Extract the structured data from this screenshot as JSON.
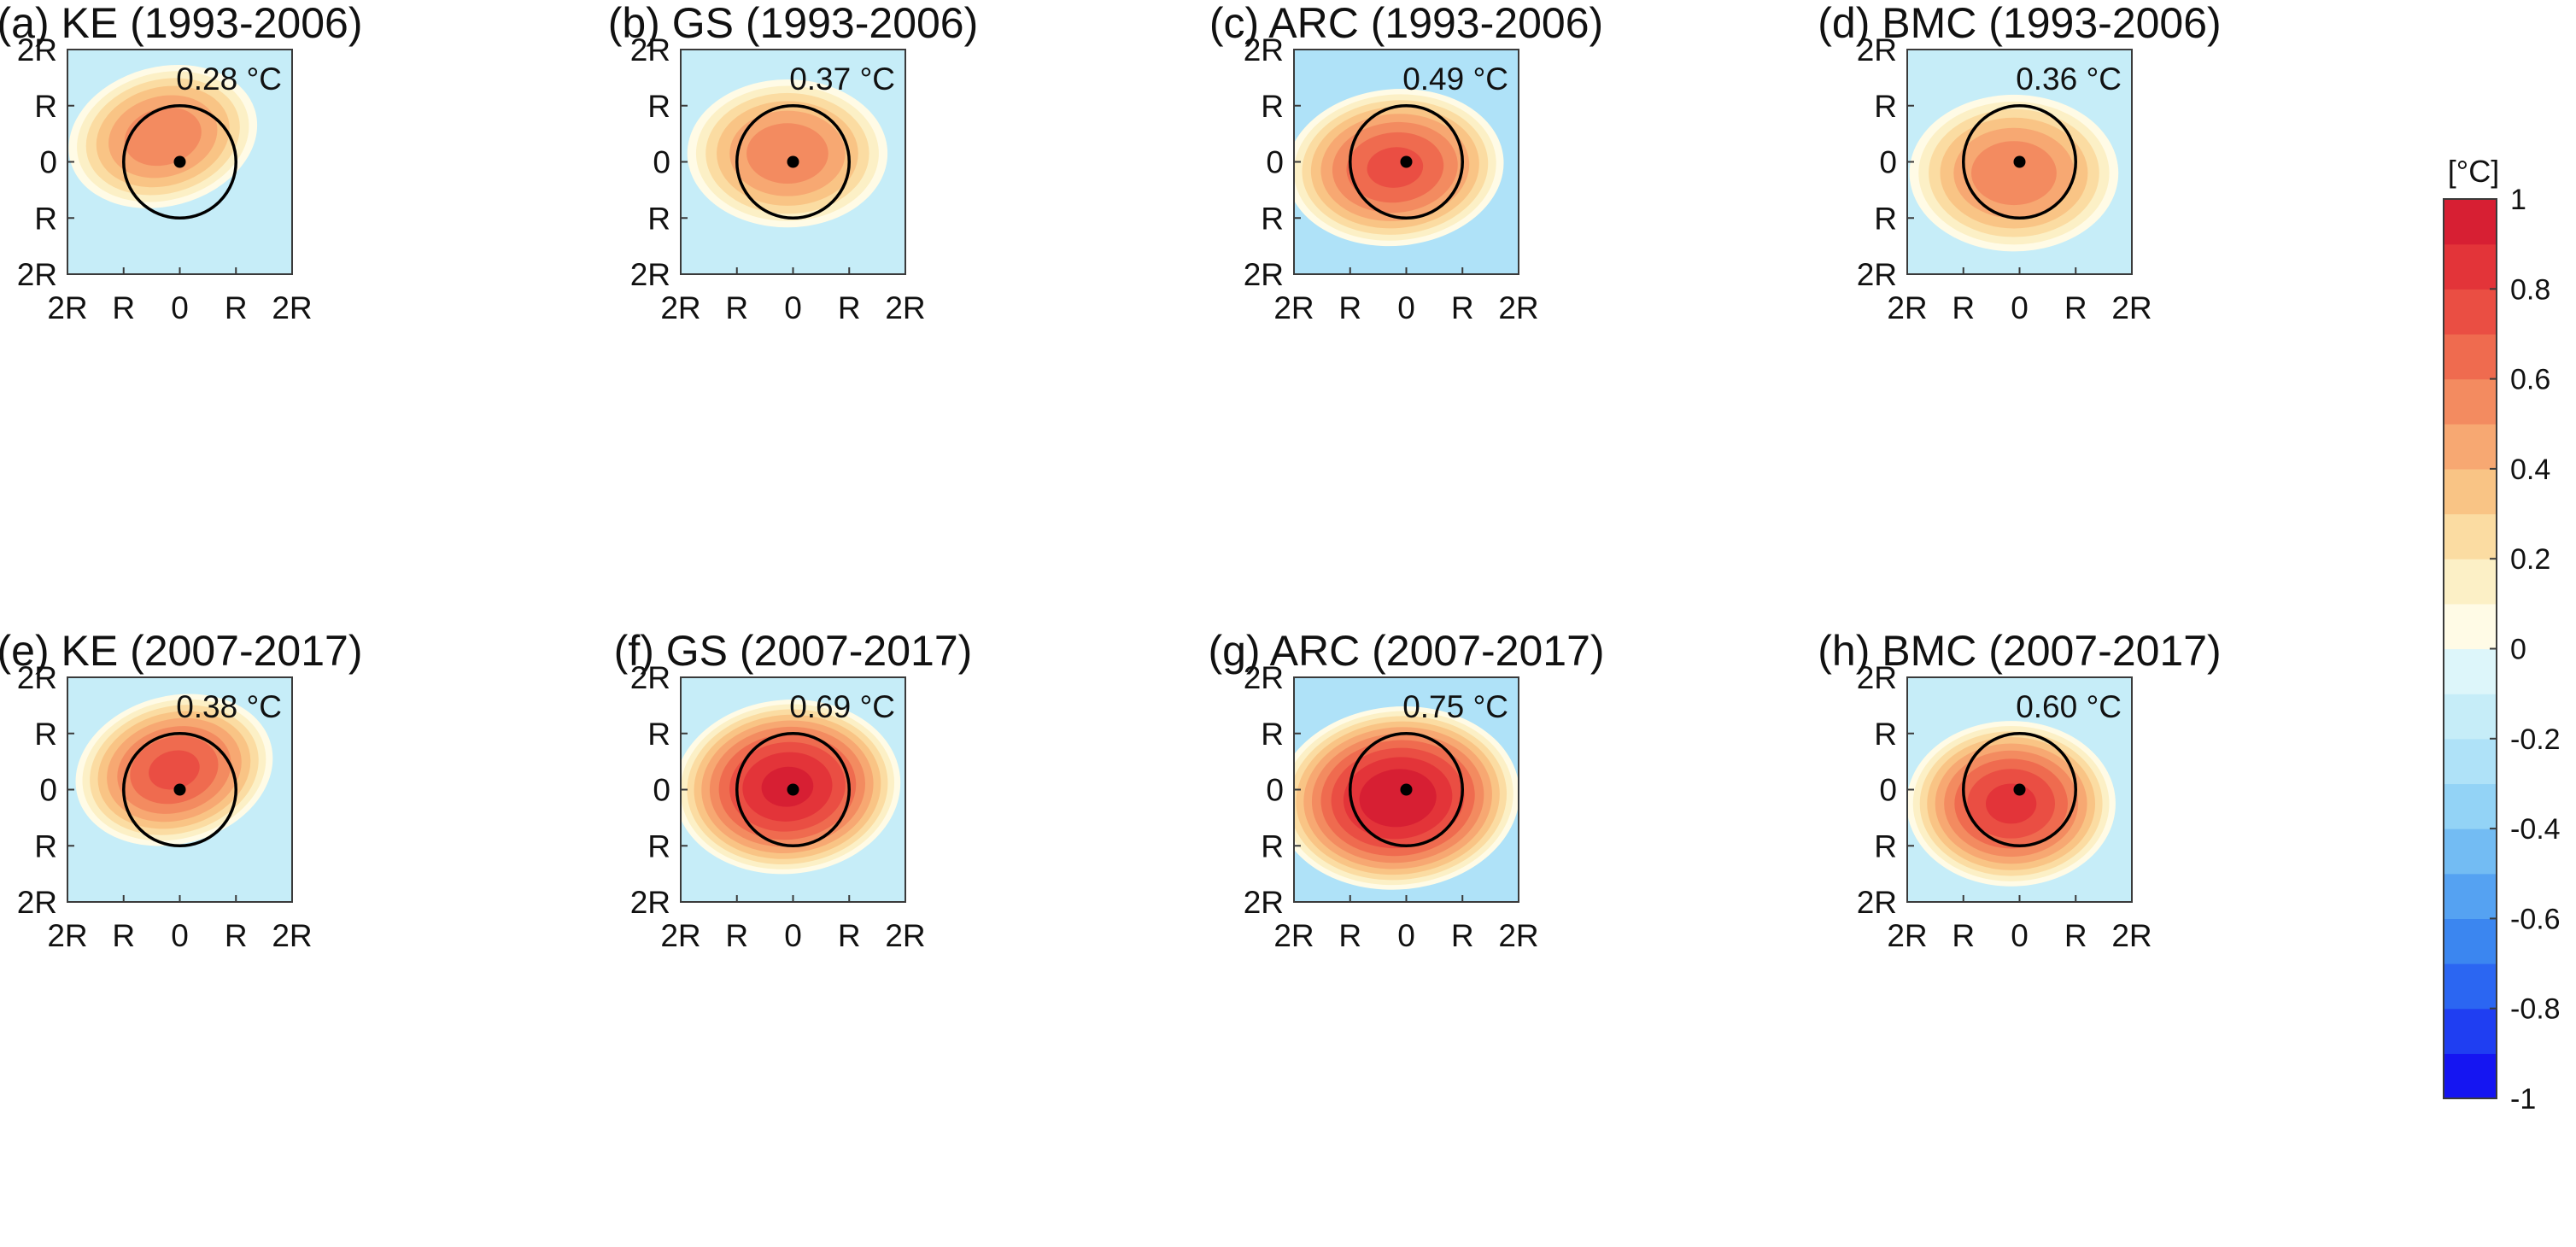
{
  "chart_data": {
    "type": "heatmap",
    "description_units": "composite SST anomaly around eddy center, radius-normalized",
    "x_ticklabels": [
      "2R",
      "R",
      "0",
      "R",
      "2R"
    ],
    "y_ticklabels": [
      "2R",
      "R",
      "0",
      "R",
      "2R"
    ],
    "xlim": [
      -2,
      2
    ],
    "ylim": [
      -2,
      2
    ],
    "eddy_radius": 1,
    "center": [
      0,
      0
    ],
    "colorbar": {
      "unit": "[°C]",
      "range": [
        -1,
        1
      ],
      "step": 0.1,
      "ticks": [
        "1",
        "0.8",
        "0.6",
        "0.4",
        "0.2",
        "0",
        "-0.2",
        "-0.4",
        "-0.6",
        "-0.8",
        "-1"
      ],
      "colors_low_to_high": [
        "#1515f2",
        "#1f3ef2",
        "#2b66f2",
        "#3b86f0",
        "#55a2f2",
        "#73bcf3",
        "#93d3f6",
        "#afe2f8",
        "#c6edf8",
        "#ddf6fa",
        "#fffbe6",
        "#fcf0c6",
        "#fbdca2",
        "#f9c485",
        "#f7a872",
        "#f38b60",
        "#ef6b4f",
        "#ea4e43",
        "#e33439",
        "#d71f33"
      ]
    },
    "panels": [
      {
        "title": "(a) KE (1993-2006)",
        "max_value": "0.28 °C",
        "peak": 0.6,
        "peak_x": -0.3,
        "peak_y": 0.45,
        "spread_x": 1.1,
        "spread_y": 0.8,
        "tilt": -15,
        "background": -0.15
      },
      {
        "title": "(b) GS (1993-2006)",
        "max_value": "0.37 °C",
        "peak": 0.6,
        "peak_x": -0.1,
        "peak_y": 0.15,
        "spread_x": 1.15,
        "spread_y": 0.85,
        "tilt": 0,
        "background": -0.15
      },
      {
        "title": "(c) ARC (1993-2006)",
        "max_value": "0.49 °C",
        "peak": 0.75,
        "peak_x": -0.2,
        "peak_y": -0.1,
        "spread_x": 1.25,
        "spread_y": 0.9,
        "tilt": -5,
        "background": -0.25
      },
      {
        "title": "(d) BMC (1993-2006)",
        "max_value": "0.36 °C",
        "peak": 0.6,
        "peak_x": -0.1,
        "peak_y": -0.2,
        "spread_x": 1.2,
        "spread_y": 0.9,
        "tilt": 0,
        "background": -0.15
      },
      {
        "title": "(e) KE (2007-2017)",
        "max_value": "0.38 °C",
        "peak": 0.75,
        "peak_x": -0.1,
        "peak_y": 0.35,
        "spread_x": 1.15,
        "spread_y": 0.85,
        "tilt": -15,
        "background": -0.15
      },
      {
        "title": "(f) GS (2007-2017)",
        "max_value": "0.69 °C",
        "peak": 0.95,
        "peak_x": -0.1,
        "peak_y": 0.05,
        "spread_x": 1.3,
        "spread_y": 1.0,
        "tilt": -5,
        "background": -0.2
      },
      {
        "title": "(g) ARC (2007-2017)",
        "max_value": "0.75 °C",
        "peak": 1.0,
        "peak_x": -0.15,
        "peak_y": -0.15,
        "spread_x": 1.4,
        "spread_y": 1.05,
        "tilt": -5,
        "background": -0.25
      },
      {
        "title": "(h) BMC (2007-2017)",
        "max_value": "0.60 °C",
        "peak": 0.85,
        "peak_x": -0.15,
        "peak_y": -0.25,
        "spread_x": 1.2,
        "spread_y": 0.95,
        "tilt": 0,
        "background": -0.15
      }
    ]
  }
}
